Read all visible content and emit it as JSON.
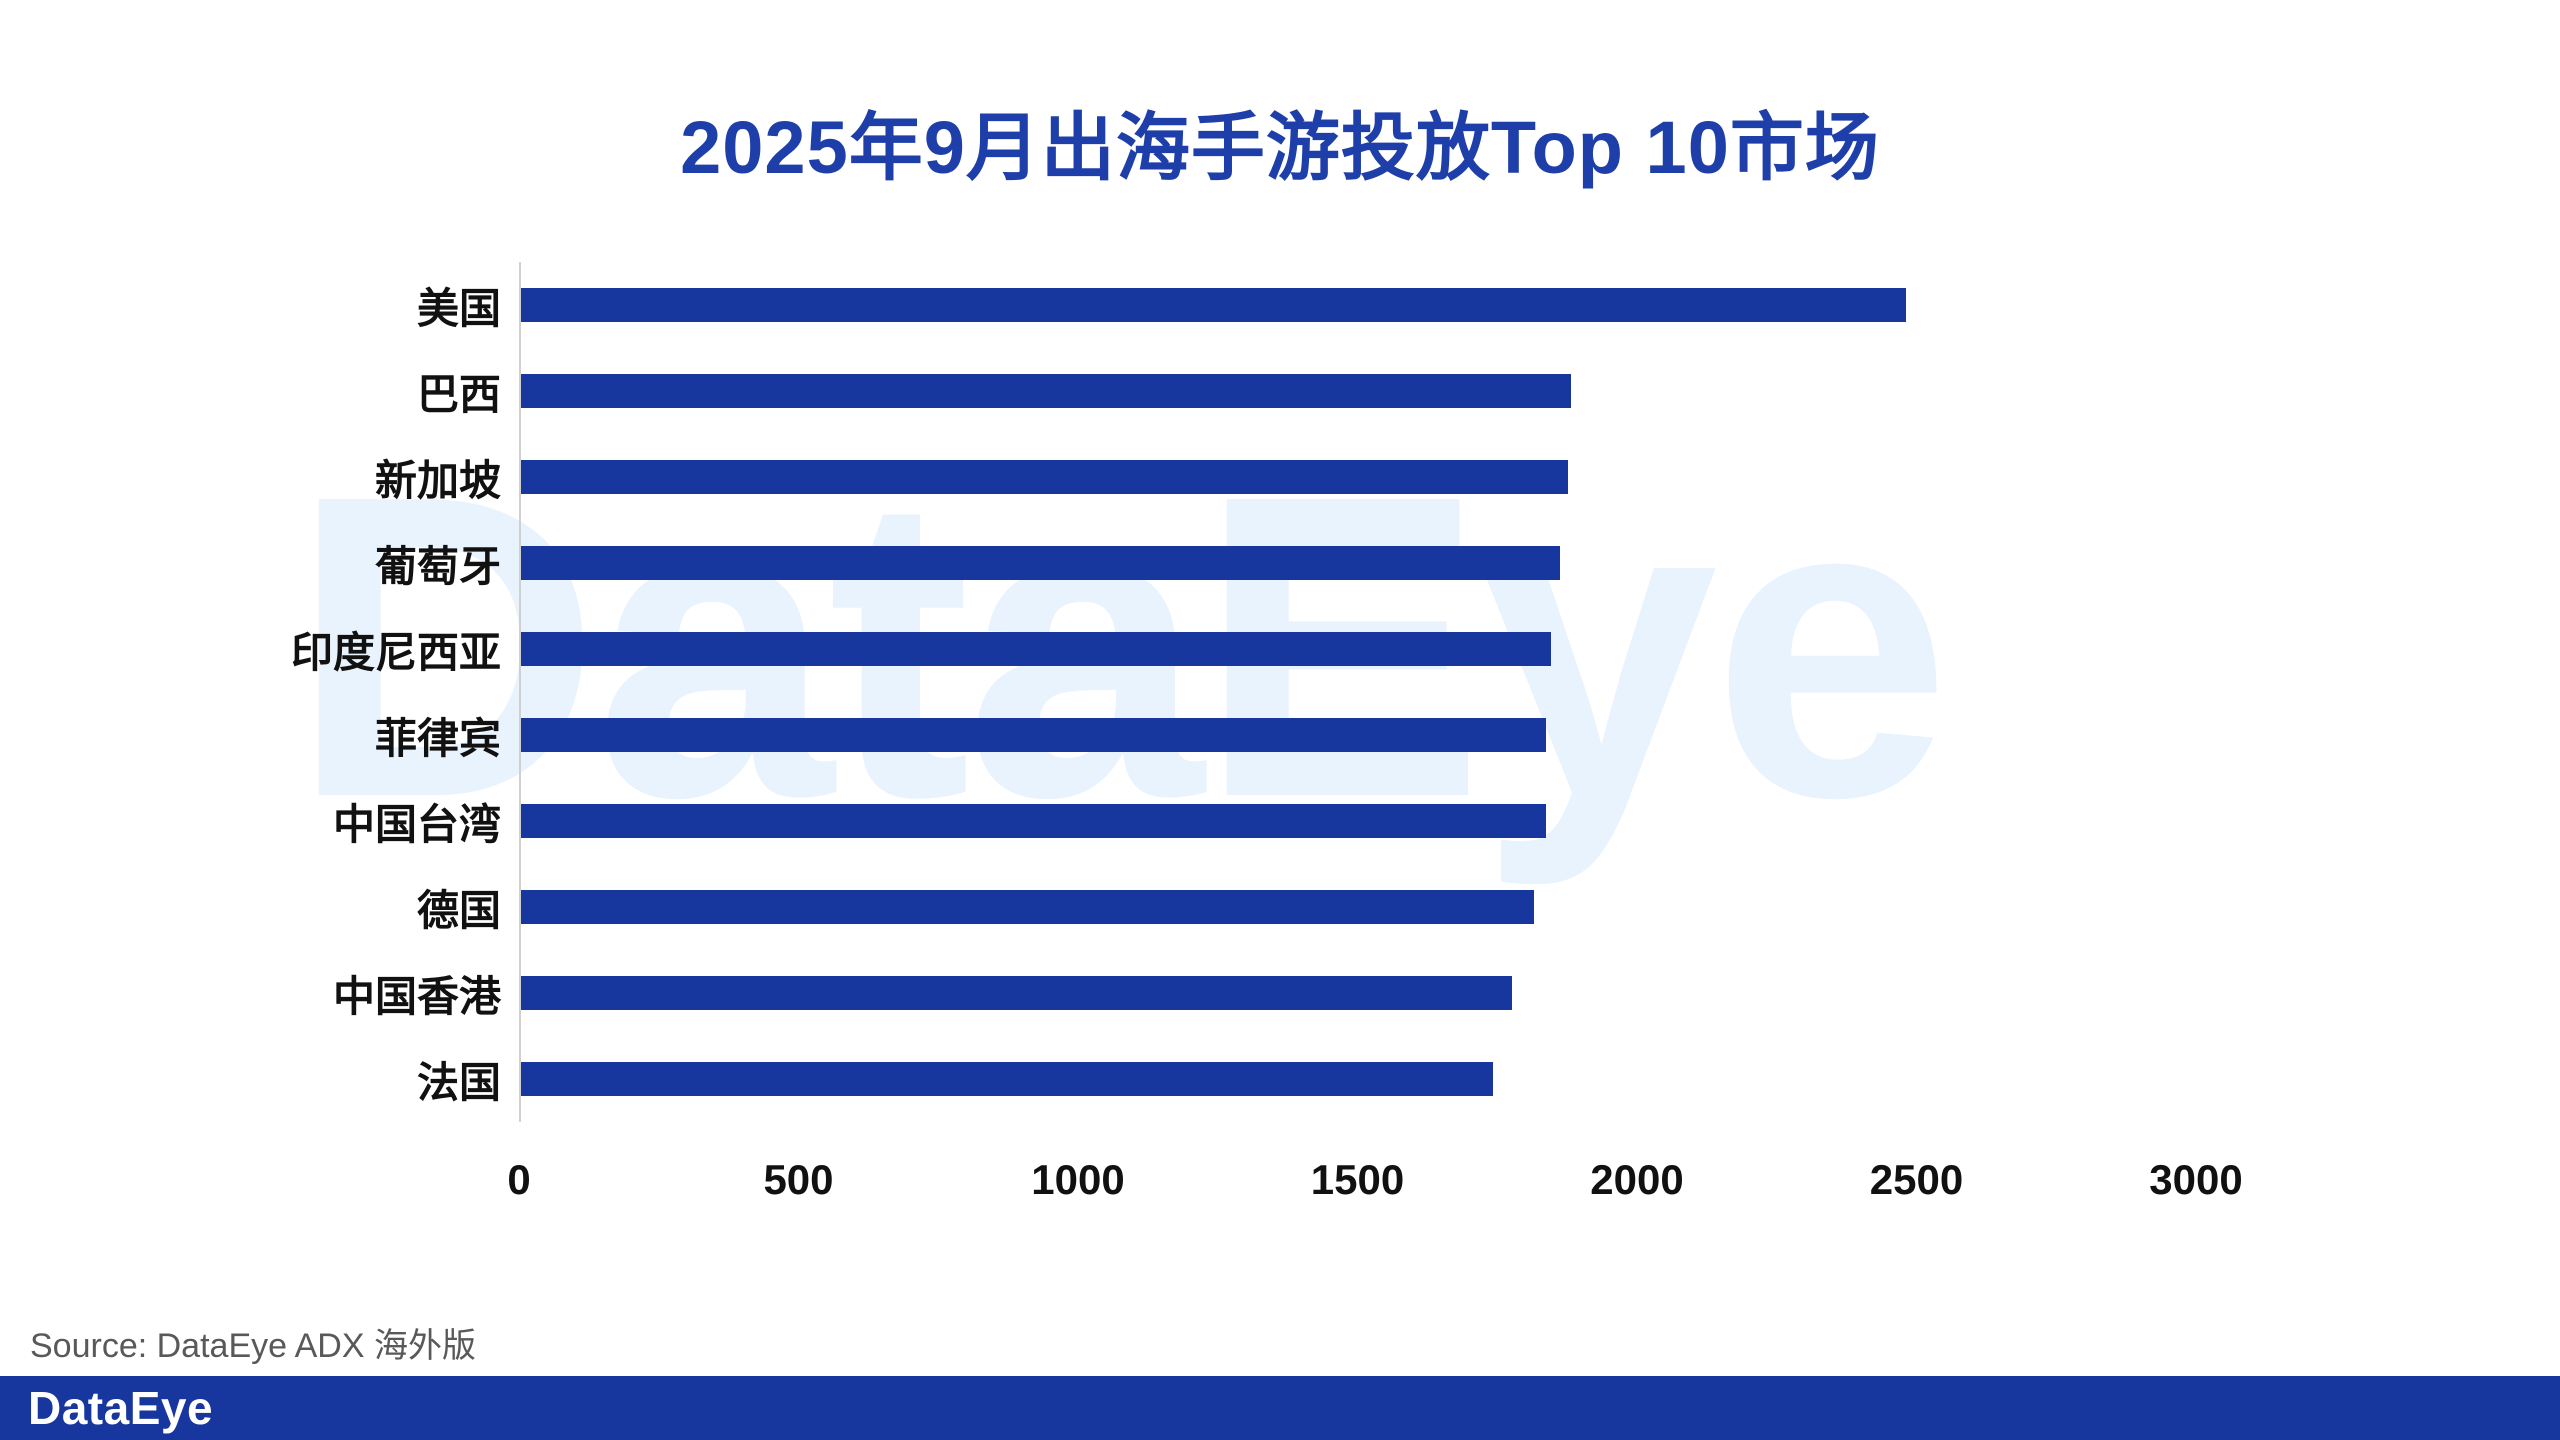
{
  "title": "2025年9月出海手游投放Top 10市场",
  "watermark": "DataEye",
  "source": "Source: DataEye ADX 海外版",
  "footer": {
    "logo_text": "DataEye"
  },
  "colors": {
    "title": "#1e3fa9",
    "bar": "#17369e",
    "footer_bg": "#17369e",
    "watermark": "#e9f3fd",
    "axis_line": "#d0d0d0",
    "source_text": "#595959"
  },
  "chart_data": {
    "type": "bar",
    "orientation": "horizontal",
    "title": "2025年9月出海手游投放Top 10市场",
    "categories": [
      "美国",
      "巴西",
      "新加坡",
      "葡萄牙",
      "印度尼西亚",
      "菲律宾",
      "中国台湾",
      "德国",
      "中国香港",
      "法国"
    ],
    "values": [
      2480,
      1880,
      1875,
      1860,
      1845,
      1835,
      1835,
      1815,
      1775,
      1740
    ],
    "xlabel": "",
    "ylabel": "",
    "xlim": [
      0,
      3000
    ],
    "x_ticks": [
      0,
      500,
      1000,
      1500,
      2000,
      2500,
      3000
    ],
    "grid": false,
    "legend": "none"
  }
}
